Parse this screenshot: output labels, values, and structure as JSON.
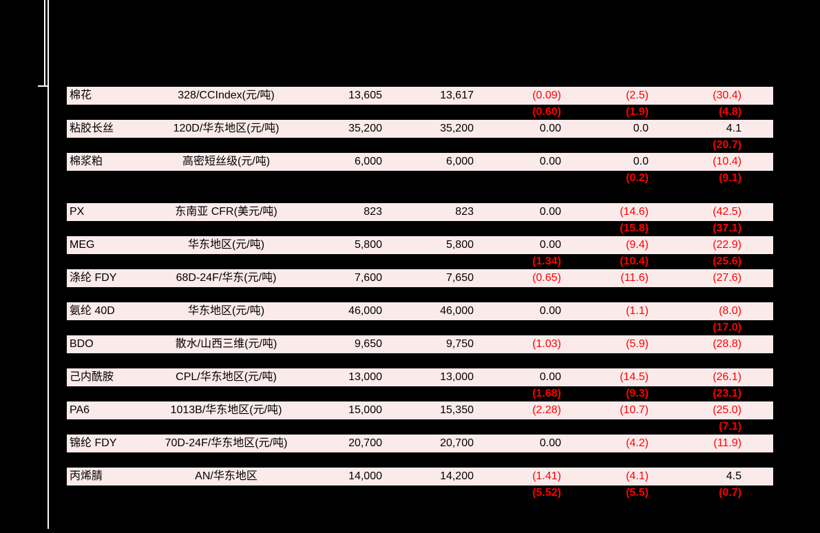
{
  "page": {
    "background_color": "#000000",
    "rule_line_color": "#ffffff"
  },
  "table": {
    "row_background_color": "#fbeaea",
    "text_color": "#000000",
    "negative_value_color": "#ff0000",
    "columns": [
      "name",
      "spec",
      "price-1",
      "price-2",
      "change-1",
      "change-2",
      "change-3"
    ],
    "rows": [
      {
        "type": "data",
        "cells": [
          "棉花",
          "328/CCIndex(元/吨)",
          "13,605",
          "13,617",
          "(0.09)",
          "(2.5)",
          "(30.4)"
        ]
      },
      {
        "type": "shadow",
        "cells": [
          "",
          "",
          "",
          "",
          "(0.60)",
          "(1.9)",
          "(4.8)"
        ]
      },
      {
        "type": "data",
        "cells": [
          "粘胶长丝",
          "120D/华东地区(元/吨)",
          "35,200",
          "35,200",
          "0.00",
          "0.0",
          "4.1"
        ]
      },
      {
        "type": "shadow",
        "cells": [
          "",
          "",
          "",
          "",
          "",
          "",
          "(20.7)"
        ]
      },
      {
        "type": "data",
        "cells": [
          "棉浆粕",
          "高密短丝级(元/吨)",
          "6,000",
          "6,000",
          "0.00",
          "0.0",
          "(10.4)"
        ]
      },
      {
        "type": "shadow",
        "cells": [
          "",
          "",
          "",
          "",
          "",
          "(0.2)",
          "(9.1)"
        ]
      },
      {
        "type": "spacer",
        "cells": [
          "",
          "",
          "",
          "",
          "",
          "",
          ""
        ]
      },
      {
        "type": "data",
        "cells": [
          "PX",
          "东南亚 CFR(美元/吨)",
          "823",
          "823",
          "0.00",
          "(14.6)",
          "(42.5)"
        ]
      },
      {
        "type": "shadow",
        "cells": [
          "",
          "",
          "",
          "",
          "",
          "(15.8)",
          "(37.1)"
        ]
      },
      {
        "type": "data",
        "cells": [
          "MEG",
          "华东地区(元/吨)",
          "5,800",
          "5,800",
          "0.00",
          "(9.4)",
          "(22.9)"
        ]
      },
      {
        "type": "shadow",
        "cells": [
          "",
          "",
          "",
          "",
          "(1.34)",
          "(10.4)",
          "(25.6)"
        ]
      },
      {
        "type": "data",
        "cells": [
          "涤纶 FDY",
          "68D-24F/华东(元/吨)",
          "7,600",
          "7,650",
          "(0.65)",
          "(11.6)",
          "(27.6)"
        ]
      },
      {
        "type": "shadow",
        "cells": [
          "",
          "",
          "",
          "",
          "",
          "",
          ""
        ]
      },
      {
        "type": "data",
        "cells": [
          "氨纶 40D",
          "华东地区(元/吨)",
          "46,000",
          "46,000",
          "0.00",
          "(1.1)",
          "(8.0)"
        ]
      },
      {
        "type": "shadow",
        "cells": [
          "",
          "",
          "",
          "",
          "",
          "",
          "(17.0)"
        ]
      },
      {
        "type": "data",
        "cells": [
          "BDO",
          "散水/山西三维(元/吨)",
          "9,650",
          "9,750",
          "(1.03)",
          "(5.9)",
          "(28.8)"
        ]
      },
      {
        "type": "shadow",
        "cells": [
          "",
          "",
          "",
          "",
          "",
          "",
          ""
        ]
      },
      {
        "type": "data",
        "cells": [
          "己内酰胺",
          "CPL/华东地区(元/吨)",
          "13,000",
          "13,000",
          "0.00",
          "(14.5)",
          "(26.1)"
        ]
      },
      {
        "type": "shadow",
        "cells": [
          "",
          "",
          "",
          "",
          "(1.68)",
          "(9.3)",
          "(23.1)"
        ]
      },
      {
        "type": "data",
        "cells": [
          "PA6",
          "1013B/华东地区(元/吨)",
          "15,000",
          "15,350",
          "(2.28)",
          "(10.7)",
          "(25.0)"
        ]
      },
      {
        "type": "shadow",
        "cells": [
          "",
          "",
          "",
          "",
          "",
          "",
          "(7.1)"
        ]
      },
      {
        "type": "data",
        "cells": [
          "锦纶 FDY",
          "70D-24F/华东地区(元/吨)",
          "20,700",
          "20,700",
          "0.00",
          "(4.2)",
          "(11.9)"
        ]
      },
      {
        "type": "shadow",
        "cells": [
          "",
          "",
          "",
          "",
          "",
          "",
          ""
        ]
      },
      {
        "type": "data",
        "cells": [
          "丙烯腈",
          "AN/华东地区",
          "14,000",
          "14,200",
          "(1.41)",
          "(4.1)",
          "4.5"
        ]
      },
      {
        "type": "shadow",
        "cells": [
          "",
          "",
          "",
          "",
          "(5.52)",
          "(5.5)",
          "(0.7)"
        ]
      }
    ]
  }
}
